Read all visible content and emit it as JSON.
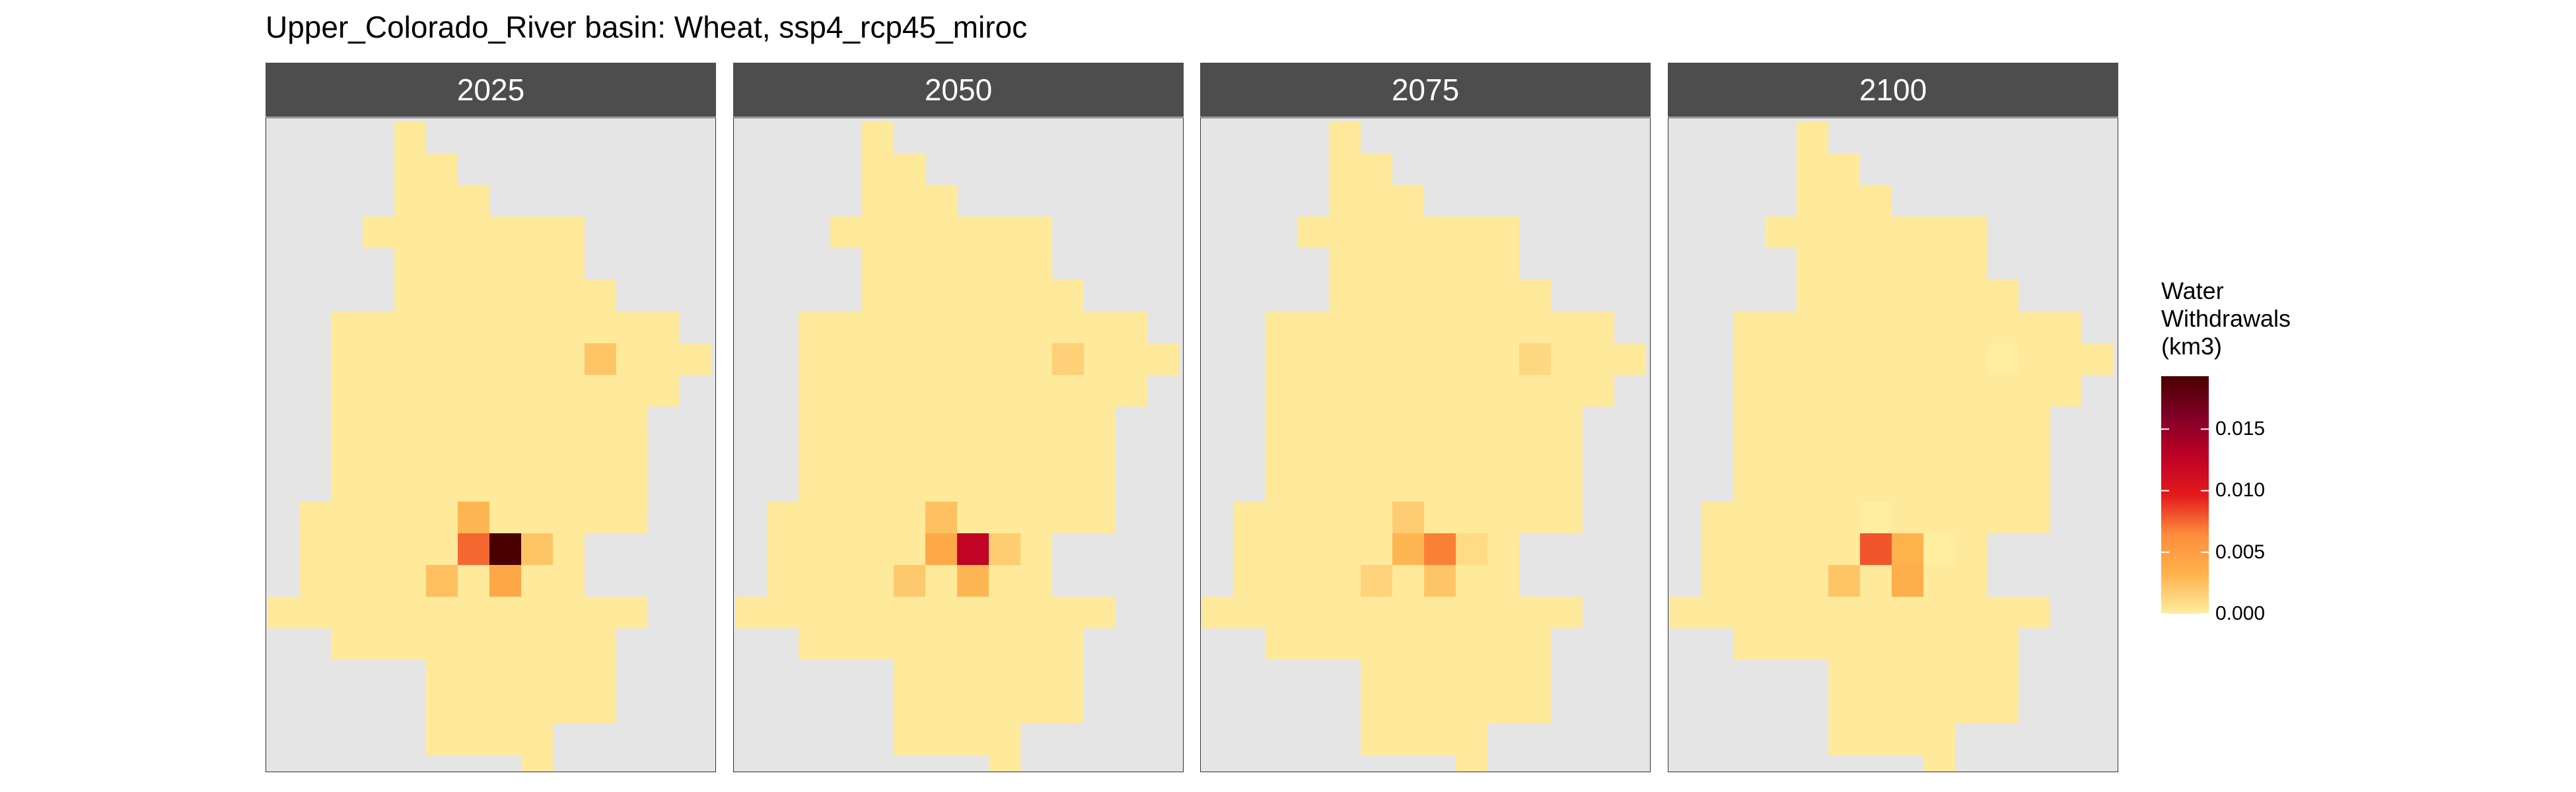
{
  "chart_data": {
    "type": "heatmap",
    "title": "Upper_Colorado_River basin: Wheat, ssp4_rcp45_miroc",
    "facets": [
      "2025",
      "2050",
      "2075",
      "2100"
    ],
    "legend": {
      "title_lines": [
        "Water",
        "Withdrawals",
        "(km3)"
      ],
      "ticks": [
        0.0,
        0.005,
        0.01,
        0.015
      ],
      "tick_labels": [
        "0.000",
        "0.005",
        "0.010",
        "0.015"
      ],
      "range": [
        0,
        0.0193
      ],
      "placement": "right"
    },
    "colors": {
      "background": "#e5e5e5",
      "strip": "#4d4d4d",
      "base_cell": "#ffeda0",
      "scale": [
        "#ffeda0",
        "#feb24c",
        "#fd8d3c",
        "#e31a1c",
        "#bd0026",
        "#800026",
        "#4a0000"
      ]
    },
    "grid": {
      "cols": 14,
      "rows": 21,
      "row_extents": [
        [
          4,
          4
        ],
        [
          4,
          5
        ],
        [
          4,
          6
        ],
        [
          3,
          9
        ],
        [
          4,
          9
        ],
        [
          4,
          10
        ],
        [
          2,
          12
        ],
        [
          2,
          13
        ],
        [
          2,
          12
        ],
        [
          2,
          11
        ],
        [
          2,
          11
        ],
        [
          2,
          11
        ],
        [
          1,
          11
        ],
        [
          1,
          9
        ],
        [
          1,
          9
        ],
        [
          0,
          11
        ],
        [
          2,
          10
        ],
        [
          5,
          10
        ],
        [
          5,
          10
        ],
        [
          5,
          8
        ],
        [
          8,
          8
        ]
      ],
      "default_value": 0.0002,
      "cells": [
        {
          "row": 7,
          "col": 10,
          "values": [
            0.0022,
            0.0016,
            0.0012,
            0.0
          ]
        },
        {
          "row": 12,
          "col": 6,
          "values": [
            0.003,
            0.0024,
            0.0018,
            0.0
          ]
        },
        {
          "row": 13,
          "col": 6,
          "values": [
            0.0075,
            0.004,
            0.003,
            0.008
          ]
        },
        {
          "row": 13,
          "col": 7,
          "values": [
            0.0193,
            0.0125,
            0.0068,
            0.0032
          ]
        },
        {
          "row": 13,
          "col": 8,
          "values": [
            0.0022,
            0.0018,
            0.001,
            0.0
          ]
        },
        {
          "row": 14,
          "col": 5,
          "values": [
            0.0025,
            0.002,
            0.0014,
            0.0022
          ]
        },
        {
          "row": 14,
          "col": 7,
          "values": [
            0.0042,
            0.003,
            0.0022,
            0.0036
          ]
        }
      ]
    }
  }
}
